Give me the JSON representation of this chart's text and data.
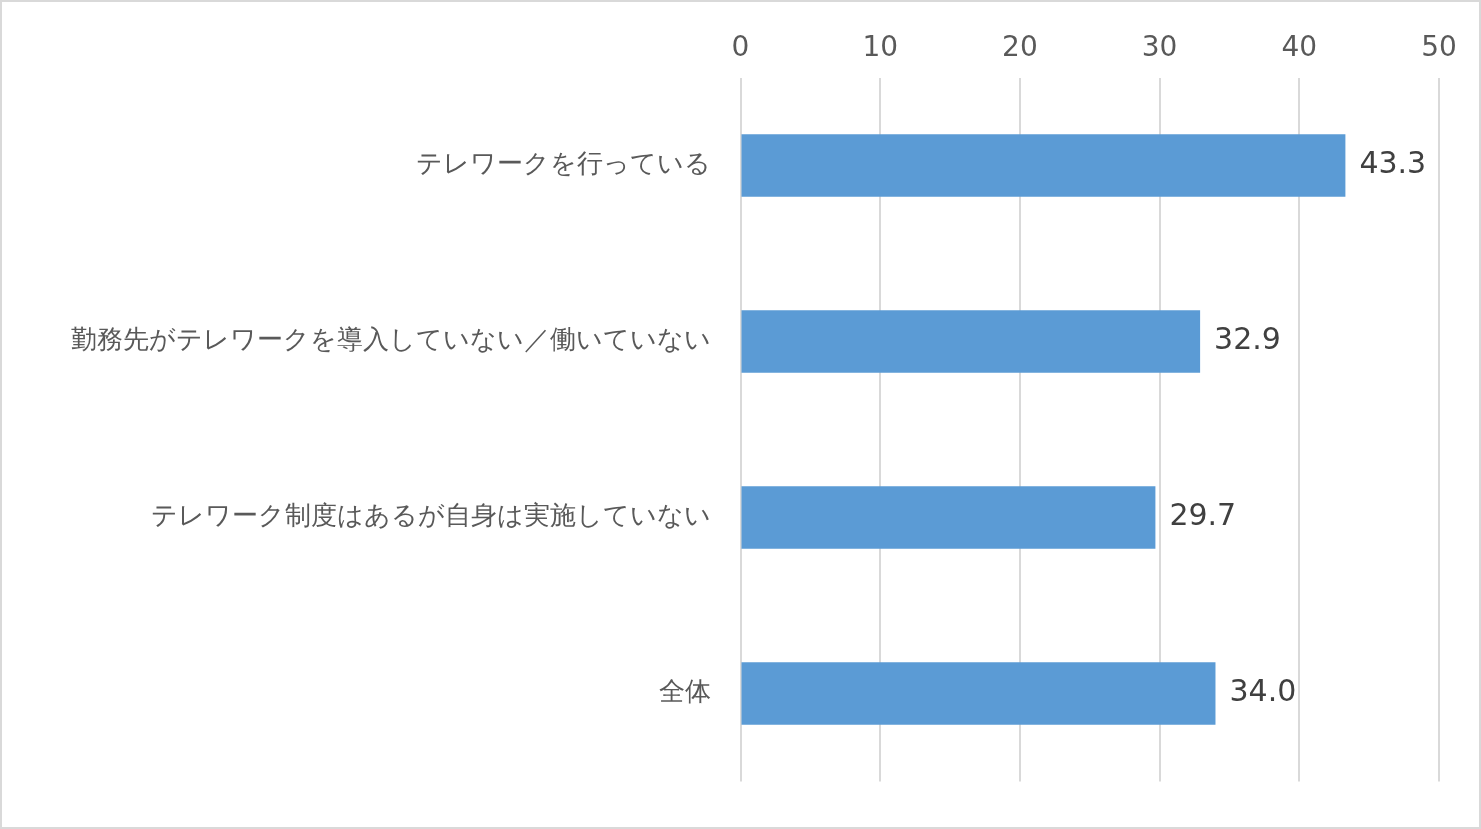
{
  "chart_data": {
    "type": "bar",
    "orientation": "horizontal",
    "categories": [
      "テレワークを行っている",
      "勤務先がテレワークを導入していない／働いていない",
      "テレワーク制度はあるが自身は実施していない",
      "全体"
    ],
    "values": [
      43.3,
      32.9,
      29.7,
      34.0
    ],
    "value_labels": [
      "43.3",
      "32.9",
      "29.7",
      "34.0"
    ],
    "color": "#5b9bd5",
    "xlim": [
      0,
      50
    ],
    "xticks": [
      0,
      10,
      20,
      30,
      40,
      50
    ],
    "grid": "x",
    "legend": false
  }
}
